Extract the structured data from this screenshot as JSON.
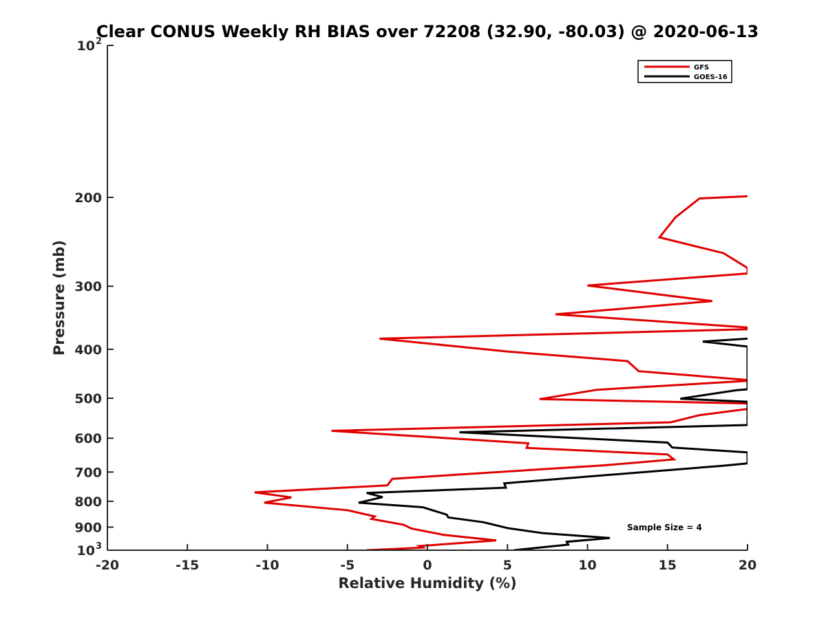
{
  "chart_data": {
    "type": "line",
    "title": "Clear CONUS Weekly RH BIAS over 72208 (32.90, -80.03) @ 2020-06-13",
    "xlabel": "Relative Humidity (%)",
    "ylabel": "Pressure (mb)",
    "xlim": [
      -20,
      20
    ],
    "ylim": [
      100,
      1000
    ],
    "y_scale": "log",
    "y_reversed": true,
    "grid": false,
    "legend_position": "top-right",
    "x_ticks": [
      "-20",
      "-15",
      "-10",
      "-5",
      "0",
      "5",
      "10",
      "15",
      "20"
    ],
    "y_ticks": [
      {
        "value": 100,
        "label": "10",
        "sup": "2"
      },
      {
        "value": 200,
        "label": "200"
      },
      {
        "value": 300,
        "label": "300"
      },
      {
        "value": 400,
        "label": "400"
      },
      {
        "value": 500,
        "label": "500"
      },
      {
        "value": 600,
        "label": "600"
      },
      {
        "value": 700,
        "label": "700"
      },
      {
        "value": 800,
        "label": "800"
      },
      {
        "value": 900,
        "label": "900"
      },
      {
        "value": 1000,
        "label": "10",
        "sup": "3"
      }
    ],
    "annotation": "Sample Size = 4",
    "series": [
      {
        "name": "GFS",
        "color": "#e00000",
        "points": [
          [
            20,
            199
          ],
          [
            17,
            201
          ],
          [
            15.5,
            219
          ],
          [
            14.5,
            240
          ],
          [
            18.5,
            258
          ],
          [
            20,
            276
          ],
          [
            20,
            283
          ],
          [
            10,
            299
          ],
          [
            17.8,
            321
          ],
          [
            8,
            341
          ],
          [
            20,
            362
          ],
          [
            20,
            365
          ],
          [
            -3,
            381
          ],
          [
            5,
            404
          ],
          [
            12.5,
            422
          ],
          [
            13.2,
            442
          ],
          [
            20,
            460
          ],
          [
            20,
            462
          ],
          [
            10.6,
            481
          ],
          [
            7,
            502
          ],
          [
            20,
            512
          ],
          [
            20,
            525
          ],
          [
            17,
            540
          ],
          [
            15.2,
            558
          ],
          [
            -6,
            580
          ],
          [
            6.3,
            614
          ],
          [
            6.2,
            627
          ],
          [
            15,
            646
          ],
          [
            15.4,
            661
          ],
          [
            11,
            679
          ],
          [
            -2.2,
            722
          ],
          [
            -2.5,
            744
          ],
          [
            -10.8,
            768
          ],
          [
            -8.5,
            786
          ],
          [
            -10.2,
            805
          ],
          [
            -5,
            833
          ],
          [
            -3.3,
            857
          ],
          [
            -3.5,
            867
          ],
          [
            -1.5,
            890
          ],
          [
            -1,
            906
          ],
          [
            1,
            932
          ],
          [
            4.3,
            956
          ],
          [
            -0.5,
            981
          ],
          [
            -0.3,
            988
          ],
          [
            -3.8,
            1000
          ]
        ]
      },
      {
        "name": "GOES-16",
        "color": "#000000",
        "points": [
          [
            20,
            381
          ],
          [
            17.2,
            386
          ],
          [
            20,
            395
          ],
          [
            20,
            480
          ],
          [
            19.3,
            482
          ],
          [
            15.8,
            501
          ],
          [
            20,
            508
          ],
          [
            20,
            565
          ],
          [
            2,
            584
          ],
          [
            15,
            612
          ],
          [
            15.3,
            626
          ],
          [
            20,
            640
          ],
          [
            20,
            673
          ],
          [
            18.5,
            680
          ],
          [
            4.8,
            737
          ],
          [
            4.9,
            752
          ],
          [
            -3.8,
            770
          ],
          [
            -2.8,
            785
          ],
          [
            -4.3,
            805
          ],
          [
            -0.3,
            822
          ],
          [
            1.2,
            850
          ],
          [
            1.3,
            861
          ],
          [
            3.5,
            880
          ],
          [
            5,
            904
          ],
          [
            7.2,
            925
          ],
          [
            11.4,
            946
          ],
          [
            8.7,
            962
          ],
          [
            8.8,
            975
          ],
          [
            5.4,
            1000
          ]
        ]
      }
    ]
  }
}
